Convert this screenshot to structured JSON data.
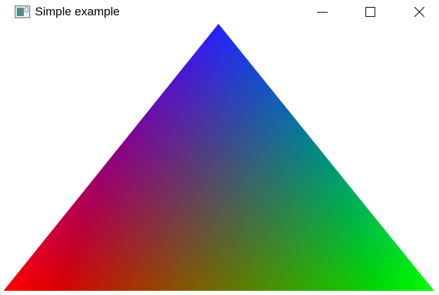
{
  "window": {
    "title": "Simple example",
    "icons": {
      "app": "window-app-icon",
      "minimize": "minimize-icon",
      "maximize": "maximize-icon",
      "close": "close-icon"
    }
  },
  "scene": {
    "shape": "triangle",
    "vertex_colors": {
      "top": "#0000ff",
      "bottom_left": "#ff0000",
      "bottom_right": "#00ff00"
    },
    "background": "#ffffff"
  }
}
